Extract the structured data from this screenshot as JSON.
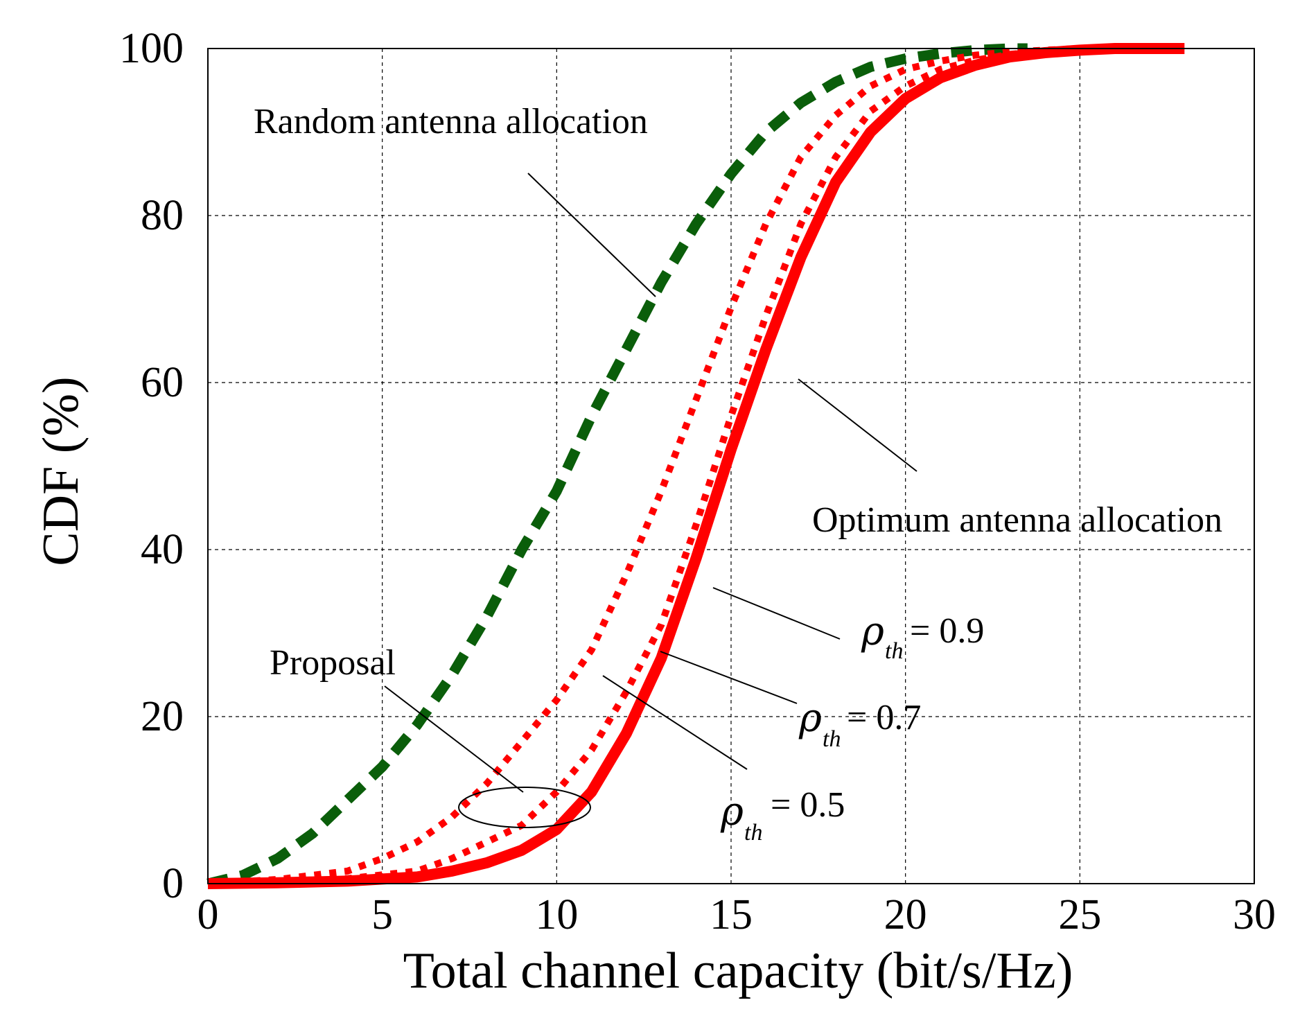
{
  "chart_data": {
    "type": "line",
    "xlabel": "Total channel capacity (bit/s/Hz)",
    "ylabel": "CDF (%)",
    "xlim": [
      0,
      30
    ],
    "ylim": [
      0,
      100
    ],
    "xticks": [
      "0",
      "5",
      "10",
      "15",
      "20",
      "25",
      "30"
    ],
    "yticks": [
      "0",
      "20",
      "40",
      "60",
      "80",
      "100"
    ],
    "grid": true,
    "colors": {
      "random": "#0a5e0a",
      "proposal": "#ff0000",
      "optimum": "#ff0000"
    },
    "series": [
      {
        "key": "random",
        "style": "dashed",
        "x": [
          0,
          1,
          2,
          3,
          4,
          5,
          6,
          7,
          8,
          9,
          10,
          11,
          12,
          13,
          14,
          15,
          16,
          17,
          18,
          19,
          20,
          21,
          22,
          23,
          23.5
        ],
        "y": [
          0,
          1,
          3,
          6,
          10,
          14,
          19,
          25,
          32,
          40,
          47,
          56,
          64,
          72,
          79,
          85,
          90,
          93.5,
          96,
          97.8,
          98.8,
          99.4,
          99.8,
          100,
          100
        ]
      },
      {
        "key": "rho_0.5",
        "style": "dotted",
        "x": [
          0,
          2,
          4,
          5,
          6,
          7,
          8,
          9,
          10,
          11,
          12,
          13,
          14,
          15,
          16,
          17,
          18,
          19,
          20,
          21,
          22,
          23,
          24,
          25,
          26
        ],
        "y": [
          0,
          0.5,
          1.5,
          3,
          5,
          8,
          12,
          17,
          22,
          28,
          37,
          47,
          58,
          69,
          79,
          87,
          92,
          95.5,
          97.5,
          98.5,
          99.2,
          99.6,
          99.8,
          100,
          100
        ]
      },
      {
        "key": "rho_0.7",
        "style": "dotted",
        "x": [
          0,
          2,
          4,
          6,
          7,
          8,
          9,
          10,
          11,
          12,
          13,
          14,
          15,
          16,
          17,
          18,
          19,
          20,
          21,
          22,
          23,
          24,
          25,
          26
        ],
        "y": [
          0,
          0.2,
          0.6,
          1.5,
          3,
          5,
          7,
          11,
          16,
          23,
          31,
          43,
          56,
          68,
          79,
          87,
          92.5,
          95.5,
          97.5,
          98.6,
          99.3,
          99.7,
          100,
          100
        ]
      },
      {
        "key": "rho_0.9",
        "style": "solid",
        "x": [
          0,
          2,
          4,
          6,
          7,
          8,
          9,
          10,
          11,
          12,
          13,
          14,
          15,
          16,
          17,
          18,
          19,
          20,
          21,
          22,
          23,
          24,
          25,
          26,
          27,
          28
        ],
        "y": [
          0,
          0.1,
          0.3,
          0.8,
          1.5,
          2.5,
          4,
          6.5,
          11,
          18,
          27,
          39,
          52,
          64,
          75,
          84,
          90,
          94,
          96.5,
          98,
          99,
          99.5,
          99.8,
          100,
          100,
          100
        ]
      }
    ],
    "annotations": {
      "random": "Random antenna allocation",
      "optimum": "Optimum antenna allocation",
      "proposal": "Proposal",
      "rho_symbol": "ρ",
      "rho_sub": "th",
      "rho_09": "= 0.9",
      "rho_07": "= 0.7",
      "rho_05": "= 0.5"
    }
  }
}
